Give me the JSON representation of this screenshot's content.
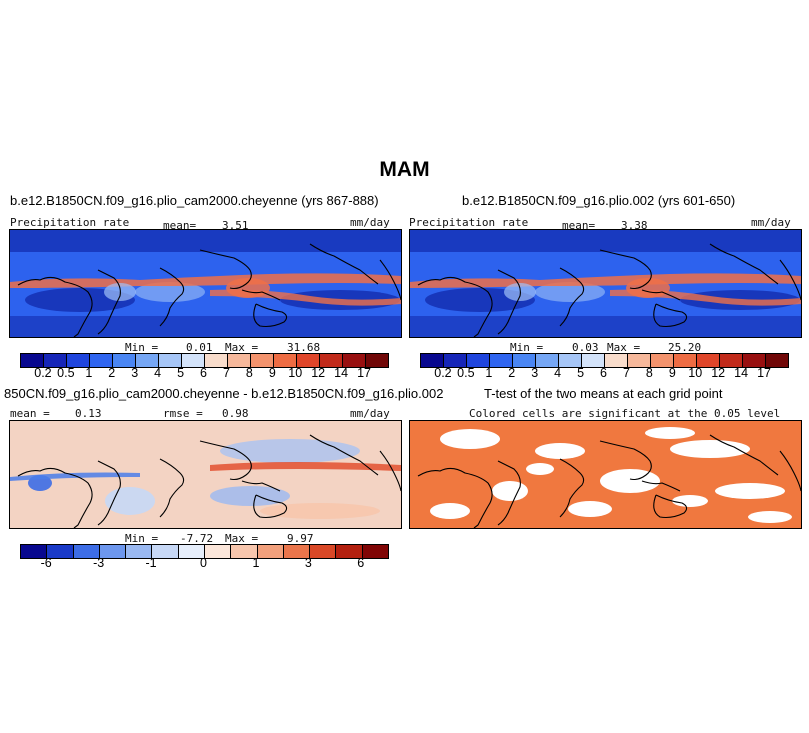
{
  "season_title": "MAM",
  "panels": {
    "top_left": {
      "title": "b.e12.B1850CN.f09_g16.plio_cam2000.cheyenne (yrs 867-888)",
      "variable": "Precipitation rate",
      "mean_label": "mean=",
      "mean_value": "3.51",
      "units": "mm/day",
      "min_label": "Min =",
      "min_value": "0.01",
      "max_label": "Max =",
      "max_value": "31.68"
    },
    "top_right": {
      "title": "b.e12.B1850CN.f09_g16.plio.002 (yrs 601-650)",
      "variable": "Precipitation rate",
      "mean_label": "mean=",
      "mean_value": "3.38",
      "units": "mm/day",
      "min_label": "Min =",
      "min_value": "0.03",
      "max_label": "Max =",
      "max_value": "25.20"
    },
    "bottom_left": {
      "title": "850CN.f09_g16.plio_cam2000.cheyenne - b.e12.B1850CN.f09_g16.plio.002",
      "mean_label": "mean =",
      "mean_value": "0.13",
      "rmse_label": "rmse =",
      "rmse_value": "0.98",
      "units": "mm/day",
      "min_label": "Min =",
      "min_value": "-7.72",
      "max_label": "Max =",
      "max_value": "9.97"
    },
    "bottom_right": {
      "title": "T-test of the two means at each grid point",
      "subtitle": "Colored cells are significant at the 0.05 level"
    }
  },
  "colorbars": {
    "precip": {
      "colors": [
        "#08088f",
        "#1626b8",
        "#1f45dd",
        "#2f65f0",
        "#4a86f3",
        "#76a7f5",
        "#a6c6f7",
        "#d3e3fa",
        "#f8dccb",
        "#f6b89b",
        "#f3936d",
        "#ee6c43",
        "#e0462a",
        "#c12a1a",
        "#981010",
        "#700707"
      ],
      "labels": [
        "0.2",
        "0.5",
        "1",
        "2",
        "3",
        "4",
        "5",
        "6",
        "7",
        "8",
        "9",
        "10",
        "12",
        "14",
        "17"
      ]
    },
    "diff": {
      "colors": [
        "#08088f",
        "#1a3ac8",
        "#3d6de6",
        "#6d97ee",
        "#9ab9f2",
        "#c7d8f6",
        "#e6eefb",
        "#fbe6da",
        "#f7c6ad",
        "#f2a07c",
        "#ea754b",
        "#d94827",
        "#b3200f",
        "#800505"
      ],
      "labels": [
        "-6",
        "-3",
        "-1",
        "0",
        "1",
        "3",
        "6"
      ],
      "label_boundaries": [
        1,
        3,
        5,
        7,
        9,
        11,
        13
      ]
    }
  },
  "map_colors": {
    "precip_base": "#2d62ee",
    "precip_wet": "#f07048",
    "precip_dry": "#0a1a9a",
    "precip_mid": "#9fc1f6",
    "diff_base": "#f3d3c3",
    "ttest": "#f0783f",
    "coast": "#000000"
  }
}
